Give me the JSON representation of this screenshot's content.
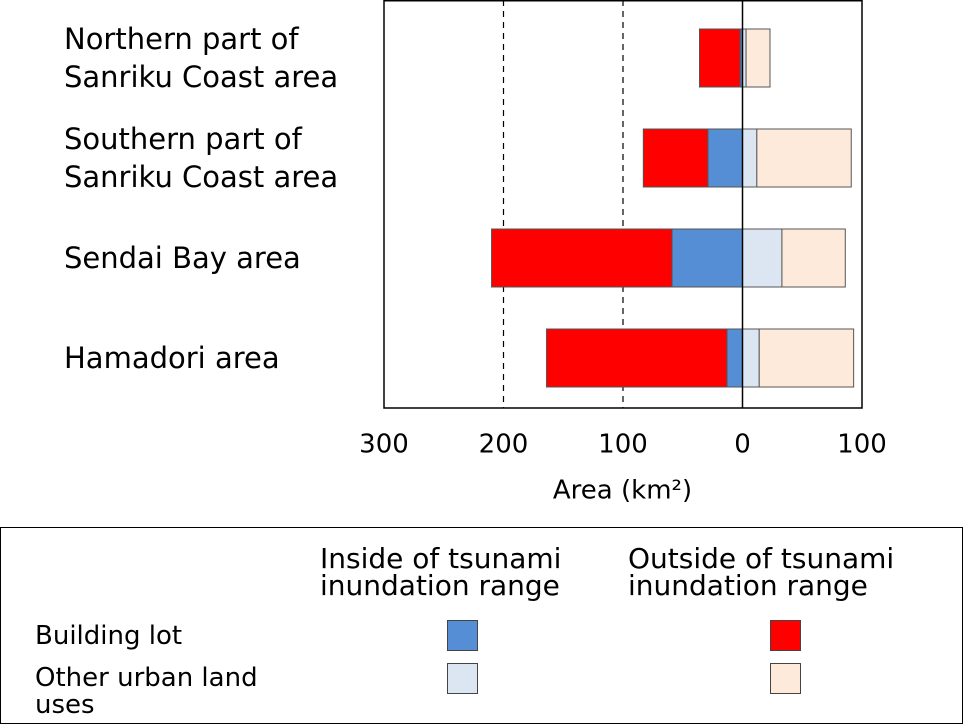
{
  "chart_data": {
    "type": "diverging-stacked-bar",
    "categories": [
      "Northern part of Sanriku Coast area",
      "Southern part of Sanriku Coast area",
      "Sendai Bay area",
      "Hamadori area"
    ],
    "series": [
      {
        "row": 0,
        "column": 0,
        "color": "#558ed5",
        "values": [
          -2,
          -29,
          -59,
          -13
        ]
      },
      {
        "row": 0,
        "column": 1,
        "color": "#ff0000",
        "values": [
          -34,
          -54,
          -151,
          -151
        ]
      },
      {
        "row": 1,
        "column": 0,
        "color": "#dce6f2",
        "values": [
          3,
          12,
          33,
          14
        ]
      },
      {
        "row": 1,
        "column": 1,
        "color": "#fdeada",
        "values": [
          20,
          79,
          53,
          79
        ]
      }
    ],
    "xlim": [
      -300,
      100
    ],
    "xticks": [
      {
        "value": -300,
        "label": "300"
      },
      {
        "value": -200,
        "label": "200"
      },
      {
        "value": -100,
        "label": "100"
      },
      0,
      100
    ],
    "gridlines": [
      -200,
      -100
    ],
    "x_label": "Area (km²)",
    "legend": {
      "rows": [
        "Building lot",
        "Other urban land uses"
      ],
      "columns": [
        "Inside of tsunami inundation range",
        "Outside of tsunami inundation range"
      ]
    }
  }
}
